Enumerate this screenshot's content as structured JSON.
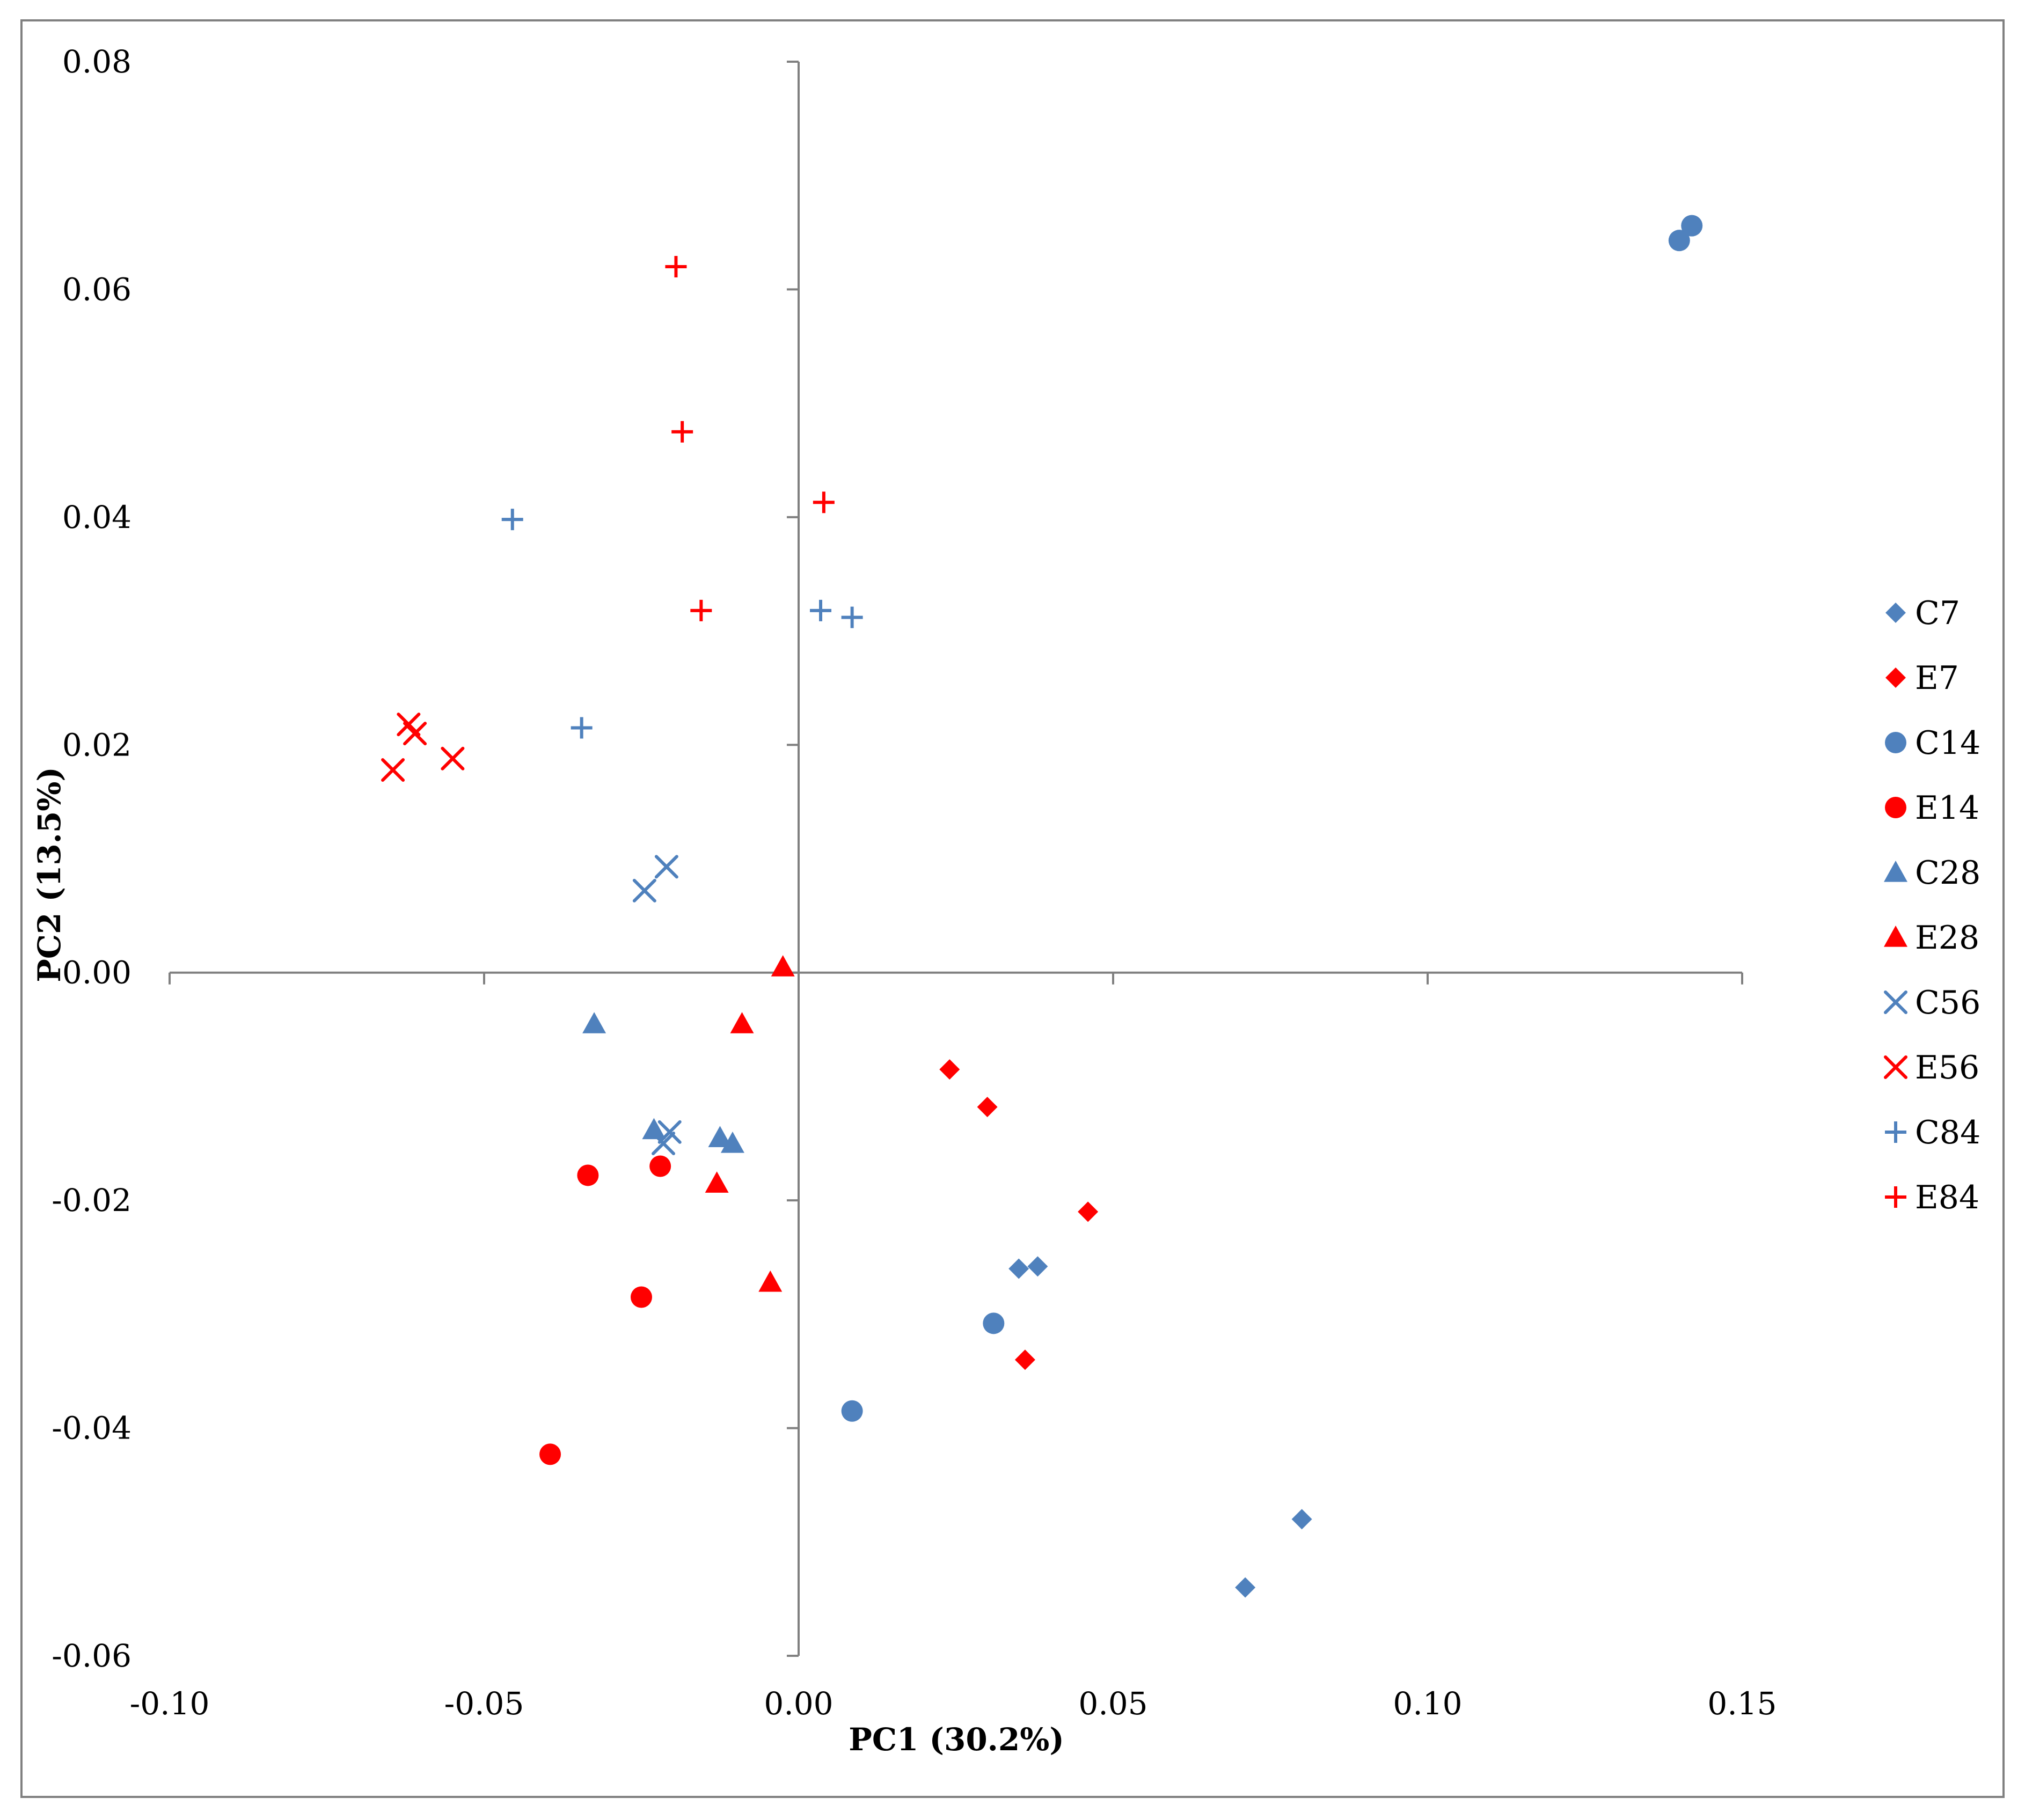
{
  "chart_data": {
    "type": "scatter",
    "title": "",
    "xlabel": "PC1 (30.2%)",
    "ylabel": "PC2 (13.5%)",
    "xlim": [
      -0.1,
      0.15
    ],
    "ylim": [
      -0.06,
      0.08
    ],
    "xticks": [
      -0.1,
      -0.05,
      0.0,
      0.05,
      0.1,
      0.15
    ],
    "yticks": [
      -0.06,
      -0.04,
      -0.02,
      0.0,
      0.02,
      0.04,
      0.06,
      0.08
    ],
    "xtick_labels": [
      "-0.10",
      "-0.05",
      "0.00",
      "0.05",
      "0.10",
      "0.15"
    ],
    "ytick_labels": [
      "-0.06",
      "-0.04",
      "-0.02",
      "0.00",
      "0.02",
      "0.04",
      "0.06",
      "0.08"
    ],
    "grid": false,
    "legend_position": "right",
    "colors": {
      "C": "#4f81bd",
      "E": "#ff0000",
      "axis": "#808080",
      "border": "#808080"
    },
    "series": [
      {
        "name": "C7",
        "marker": "diamond",
        "color": "#4f81bd",
        "points": [
          [
            0.035,
            -0.026
          ],
          [
            0.038,
            -0.0258
          ],
          [
            0.071,
            -0.054
          ],
          [
            0.08,
            -0.048
          ]
        ]
      },
      {
        "name": "E7",
        "marker": "diamond",
        "color": "#ff0000",
        "points": [
          [
            0.024,
            -0.0085
          ],
          [
            0.03,
            -0.0118
          ],
          [
            0.036,
            -0.034
          ],
          [
            0.046,
            -0.021
          ]
        ]
      },
      {
        "name": "C14",
        "marker": "circle",
        "color": "#4f81bd",
        "points": [
          [
            0.031,
            -0.0308
          ],
          [
            0.0085,
            -0.0385
          ],
          [
            0.14,
            0.0643
          ],
          [
            0.142,
            0.0656
          ]
        ]
      },
      {
        "name": "E14",
        "marker": "circle",
        "color": "#ff0000",
        "points": [
          [
            -0.0335,
            -0.0178
          ],
          [
            -0.022,
            -0.017
          ],
          [
            -0.025,
            -0.0285
          ],
          [
            -0.0395,
            -0.0423
          ]
        ]
      },
      {
        "name": "C28",
        "marker": "triangle",
        "color": "#4f81bd",
        "points": [
          [
            -0.0325,
            -0.0045
          ],
          [
            -0.023,
            -0.0138
          ],
          [
            -0.0125,
            -0.0145
          ],
          [
            -0.0105,
            -0.015
          ]
        ]
      },
      {
        "name": "E28",
        "marker": "triangle",
        "color": "#ff0000",
        "points": [
          [
            -0.0025,
            0.0005
          ],
          [
            -0.009,
            -0.0045
          ],
          [
            -0.013,
            -0.0185
          ],
          [
            -0.0045,
            -0.0272
          ]
        ]
      },
      {
        "name": "C56",
        "marker": "x",
        "color": "#4f81bd",
        "points": [
          [
            -0.0245,
            0.0072
          ],
          [
            -0.021,
            0.0093
          ],
          [
            -0.0205,
            -0.014
          ],
          [
            -0.0215,
            -0.015
          ]
        ]
      },
      {
        "name": "E56",
        "marker": "x",
        "color": "#ff0000",
        "points": [
          [
            -0.062,
            0.0218
          ],
          [
            -0.061,
            0.021
          ],
          [
            -0.0645,
            0.0178
          ],
          [
            -0.055,
            0.0188
          ]
        ]
      },
      {
        "name": "C84",
        "marker": "plus",
        "color": "#4f81bd",
        "points": [
          [
            -0.0455,
            0.0398
          ],
          [
            -0.0345,
            0.0215
          ],
          [
            0.0035,
            0.0318
          ],
          [
            0.0085,
            0.0312
          ]
        ]
      },
      {
        "name": "E84",
        "marker": "plus",
        "color": "#ff0000",
        "points": [
          [
            -0.0195,
            0.062
          ],
          [
            -0.0185,
            0.0475
          ],
          [
            -0.0155,
            0.0318
          ],
          [
            0.004,
            0.0413
          ]
        ]
      }
    ]
  }
}
